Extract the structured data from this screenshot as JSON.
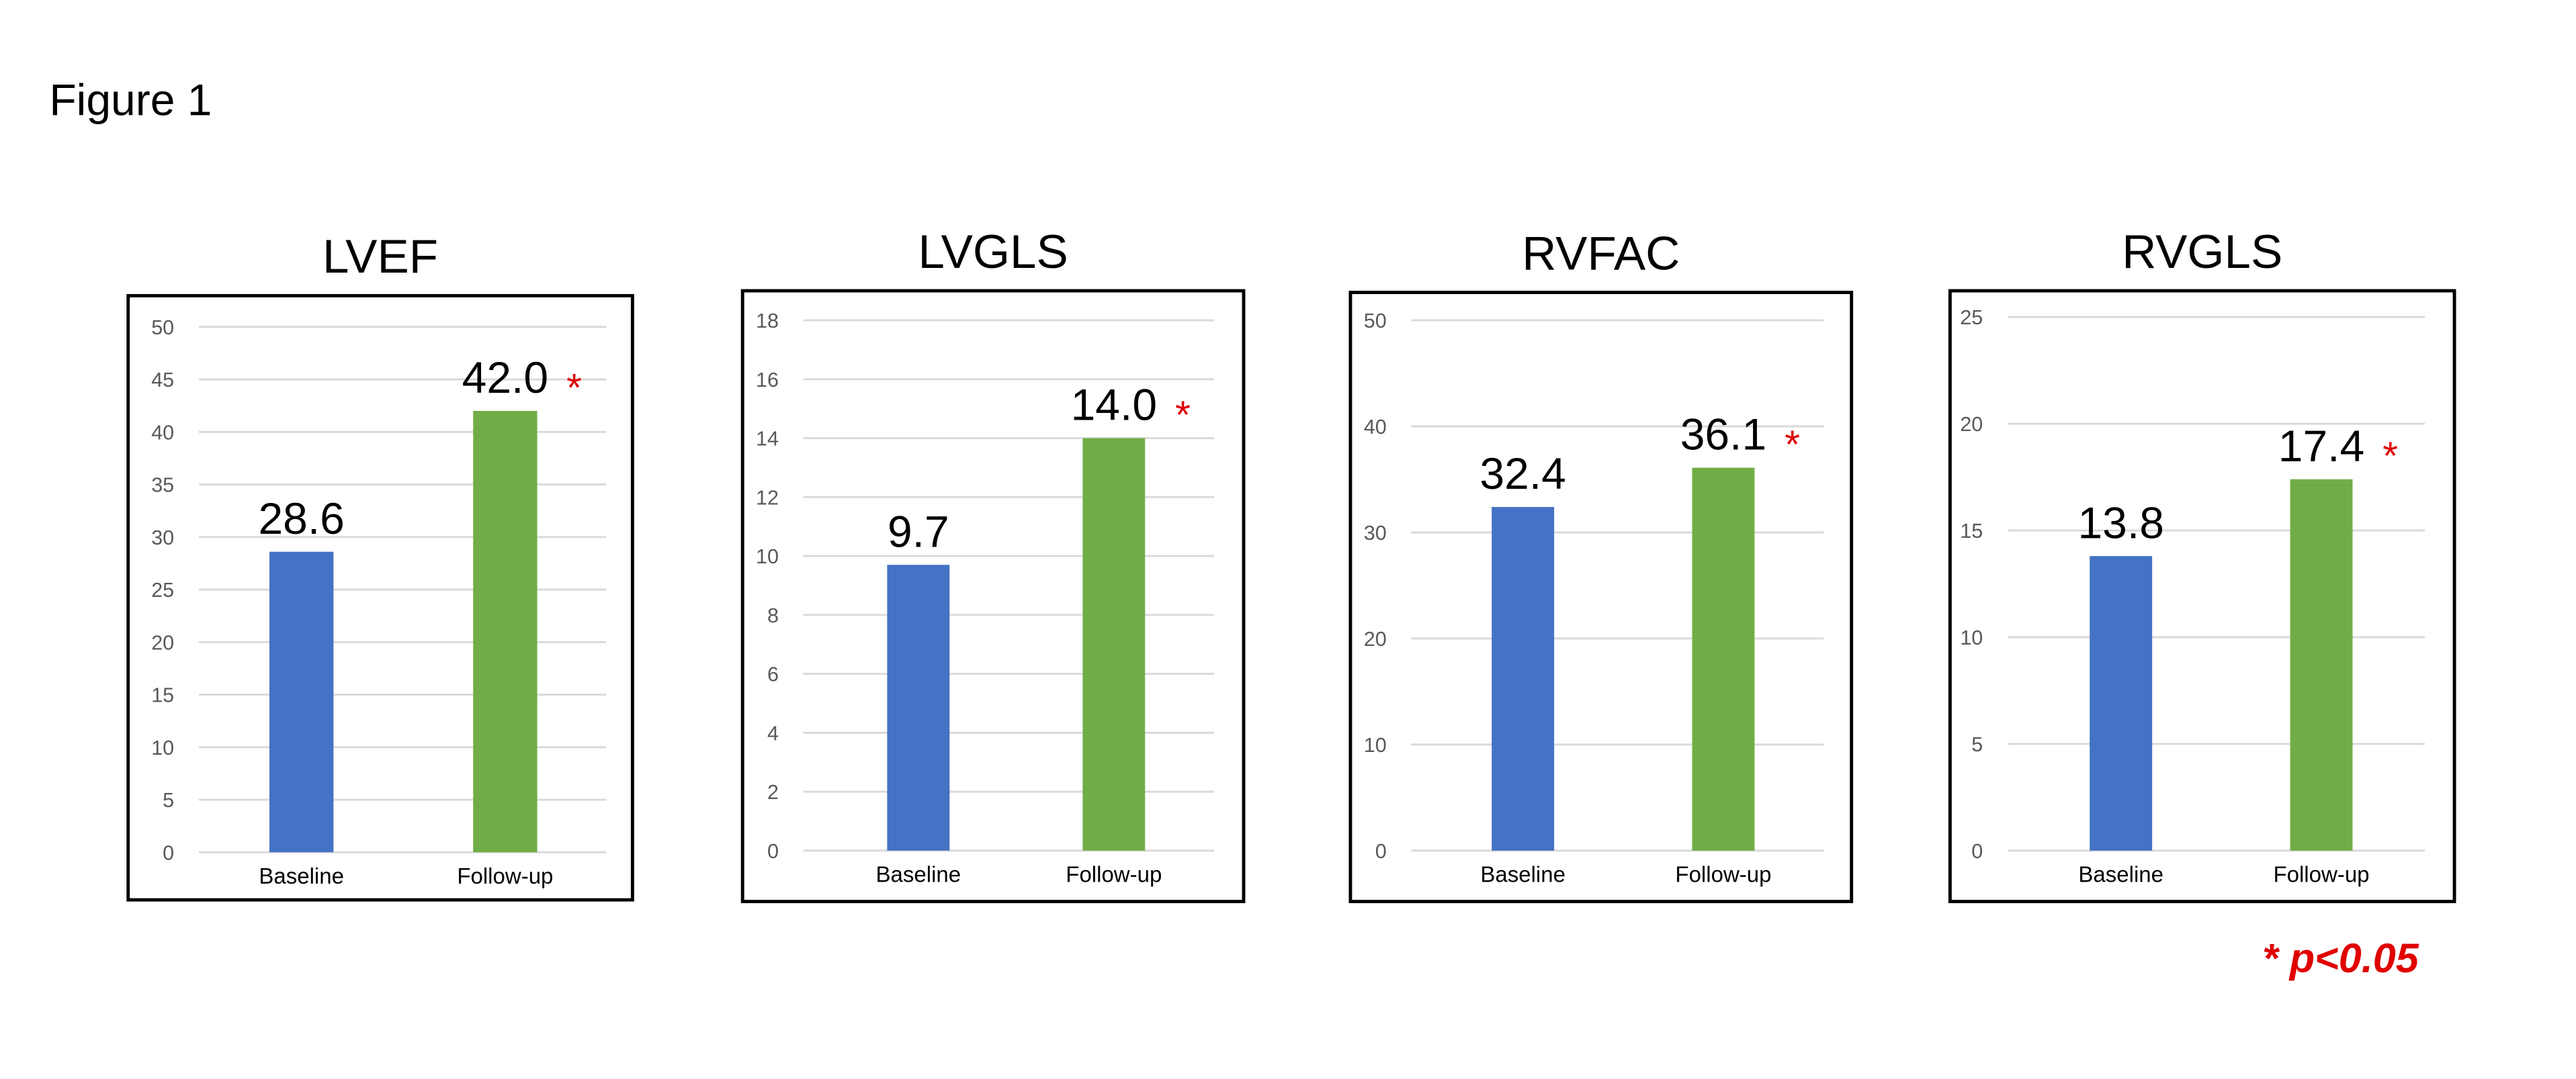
{
  "figure_title": "Figure 1",
  "footnote": "* p<0.05",
  "colors": {
    "baseline": "#4472C4",
    "followup": "#70AD47",
    "significance": "#E00000",
    "grid": "#D9D9D9",
    "tick": "#595959"
  },
  "chart_data": [
    {
      "type": "bar",
      "title": "LVEF",
      "categories": [
        "Baseline",
        "Follow-up"
      ],
      "values": [
        28.6,
        42.0
      ],
      "labels": [
        "28.6",
        "42.0"
      ],
      "significant": [
        false,
        true
      ],
      "ylim": [
        0,
        50
      ],
      "ticks": [
        0,
        5,
        10,
        15,
        20,
        25,
        30,
        35,
        40,
        45,
        50
      ],
      "grid": true
    },
    {
      "type": "bar",
      "title": "LVGLS",
      "categories": [
        "Baseline",
        "Follow-up"
      ],
      "values": [
        9.7,
        14.0
      ],
      "labels": [
        "9.7",
        "14.0"
      ],
      "significant": [
        false,
        true
      ],
      "ylim": [
        0,
        18
      ],
      "ticks": [
        0,
        2,
        4,
        6,
        8,
        10,
        12,
        14,
        16,
        18
      ],
      "grid": true
    },
    {
      "type": "bar",
      "title": "RVFAC",
      "categories": [
        "Baseline",
        "Follow-up"
      ],
      "values": [
        32.4,
        36.1
      ],
      "labels": [
        "32.4",
        "36.1"
      ],
      "significant": [
        false,
        true
      ],
      "ylim": [
        0,
        50
      ],
      "ticks": [
        0,
        10,
        20,
        30,
        40,
        50
      ],
      "grid": true
    },
    {
      "type": "bar",
      "title": "RVGLS",
      "categories": [
        "Baseline",
        "Follow-up"
      ],
      "values": [
        13.8,
        17.4
      ],
      "labels": [
        "13.8",
        "17.4"
      ],
      "significant": [
        false,
        true
      ],
      "ylim": [
        0,
        25
      ],
      "ticks": [
        0,
        5,
        10,
        15,
        20,
        25
      ],
      "grid": true
    }
  ]
}
